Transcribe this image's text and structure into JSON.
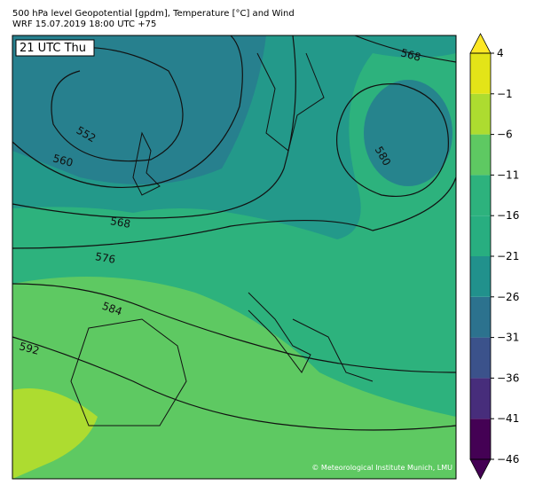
{
  "header": {
    "title": "500 hPa level Geopotential [gpdm], Temperature [°C] and Wind",
    "subtitle": "WRF 15.07.2019 18:00 UTC +75"
  },
  "map": {
    "time_label": "21 UTC Thu",
    "copyright": "© Meteorological Institute Munich, LMU",
    "contour_labels": [
      552,
      560,
      568,
      576,
      584,
      592,
      580,
      568
    ]
  },
  "colorbar": {
    "lim": [
      -46,
      4
    ],
    "ticks": [
      {
        "value": -46,
        "label": "−46"
      },
      {
        "value": -41,
        "label": "−41"
      },
      {
        "value": -36,
        "label": "−36"
      },
      {
        "value": -31,
        "label": "−31"
      },
      {
        "value": -26,
        "label": "−26"
      },
      {
        "value": -21,
        "label": "−21"
      },
      {
        "value": -16,
        "label": "−16"
      },
      {
        "value": -11,
        "label": "−11"
      },
      {
        "value": -6,
        "label": "−6"
      },
      {
        "value": -1,
        "label": "−1"
      },
      4
    ],
    "colors": [
      "#440154",
      "#472d7b",
      "#3b528b",
      "#2c728e",
      "#21918c",
      "#28ae80",
      "#2db27d",
      "#5ec962",
      "#addc30",
      "#e3e418"
    ],
    "under_color": "#440154",
    "over_color": "#fde725"
  }
}
